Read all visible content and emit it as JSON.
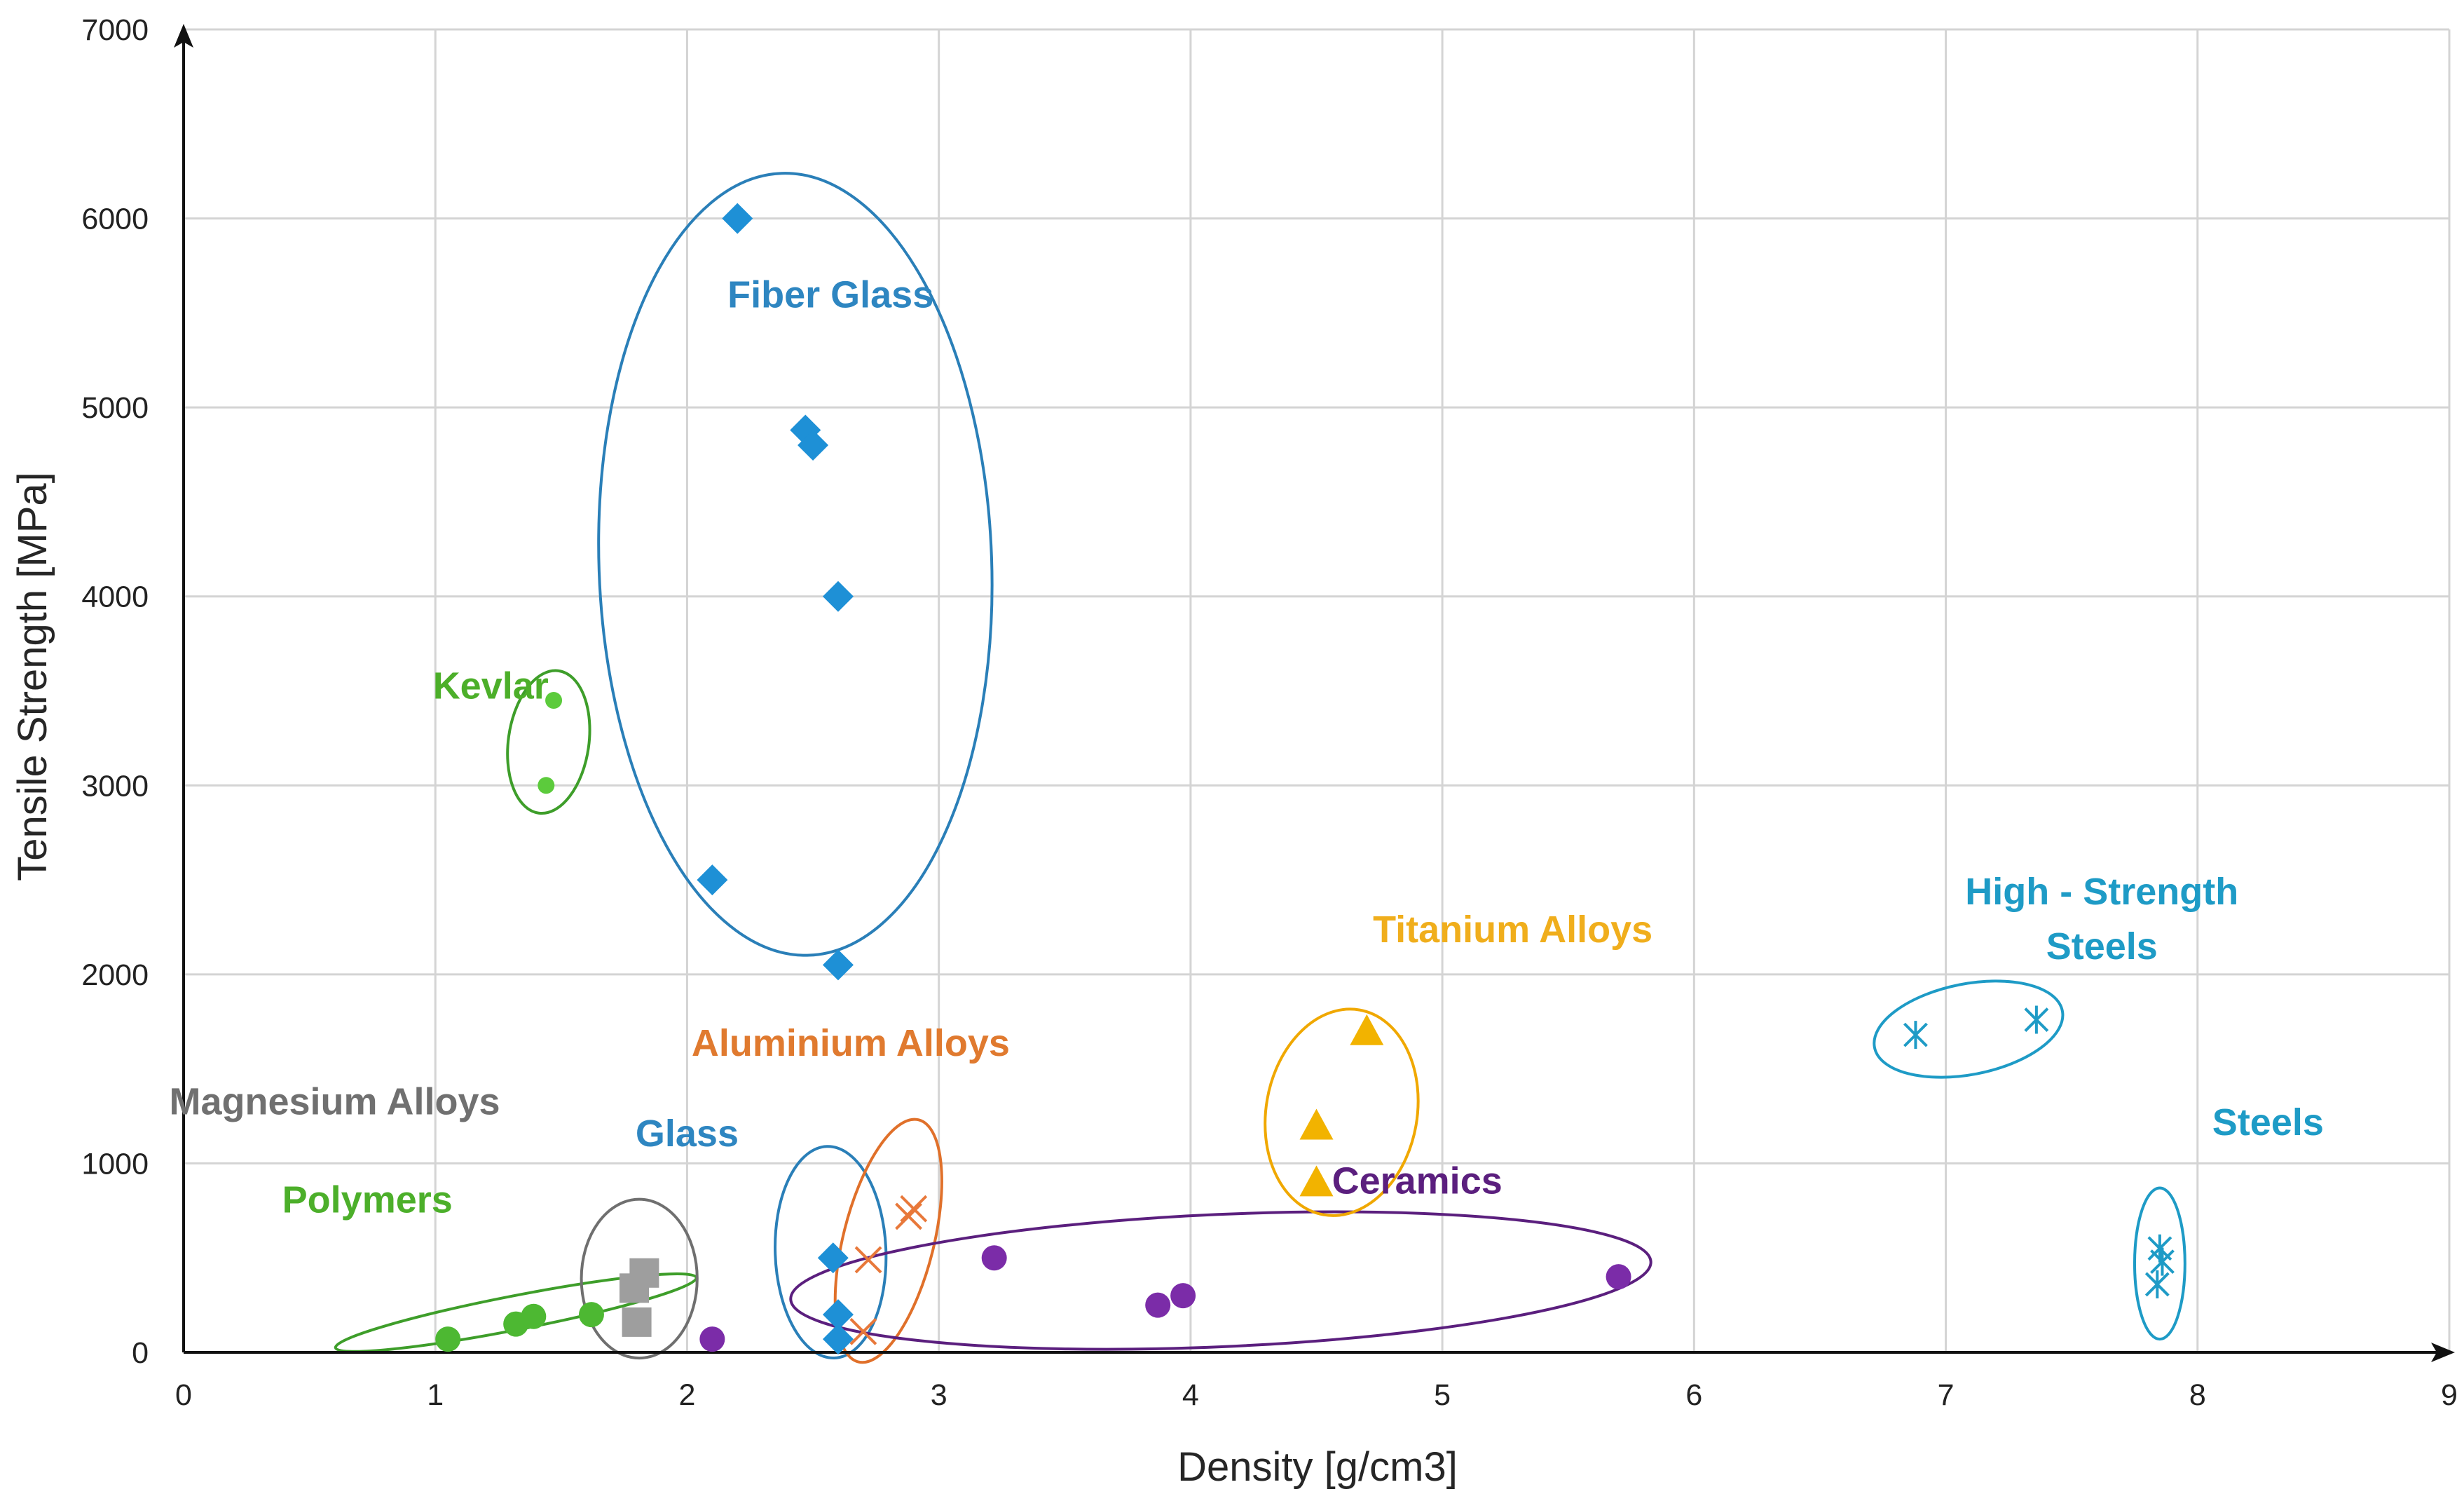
{
  "chart_data": {
    "type": "scatter",
    "title": "",
    "xlabel": "Density [g/cm3]",
    "ylabel": "Tensile Strength [MPa]",
    "xlim": [
      0,
      9
    ],
    "ylim": [
      0,
      7000
    ],
    "x_ticks": [
      0,
      1,
      2,
      3,
      4,
      5,
      6,
      7,
      8,
      9
    ],
    "y_ticks": [
      0,
      1000,
      2000,
      3000,
      4000,
      5000,
      6000,
      7000
    ],
    "grid": true,
    "series": [
      {
        "name": "Fiber Glass",
        "label": "Fiber Glass",
        "marker": "diamond",
        "color": "#1E90D6",
        "label_color": "#2E86C1",
        "ellipse_color": "#2A7FB8",
        "points": [
          [
            2.2,
            6000
          ],
          [
            2.47,
            4880
          ],
          [
            2.5,
            4800
          ],
          [
            2.6,
            4000
          ],
          [
            2.1,
            2500
          ],
          [
            2.6,
            2050
          ]
        ],
        "ellipse": {
          "cx": 2.43,
          "cy": 4170,
          "rx_units": 0.78,
          "ry_units": 2070,
          "angle_deg": -2
        },
        "label_pos": {
          "x": 2.57,
          "y": 5530
        }
      },
      {
        "name": "Kevlar",
        "label": "Kevlar",
        "marker": "circle-small",
        "color": "#5CCB3C",
        "label_color": "#4CAF2A",
        "ellipse_color": "#3E9E2A",
        "points": [
          [
            1.47,
            3450
          ],
          [
            1.44,
            3000
          ]
        ],
        "ellipse": {
          "cx": 1.45,
          "cy": 3230,
          "rx_units": 0.16,
          "ry_units": 380,
          "angle_deg": 8
        },
        "label_pos": {
          "x": 1.22,
          "y": 3460
        }
      },
      {
        "name": "Polymers",
        "label": "Polymers",
        "marker": "circle",
        "color": "#4DB832",
        "label_color": "#4CAF2A",
        "ellipse_color": "#3E9E2A",
        "points": [
          [
            1.05,
            70
          ],
          [
            1.32,
            150
          ],
          [
            1.39,
            190
          ],
          [
            1.62,
            200
          ]
        ],
        "ellipse": {
          "cx": 1.32,
          "cy": 210,
          "rx_units": 0.73,
          "ry_units": 90,
          "angle_deg": -11
        },
        "label_pos": {
          "x": 0.73,
          "y": 740
        }
      },
      {
        "name": "Magnesium Alloys",
        "label": "Magnesium Alloys",
        "marker": "square",
        "color": "#9E9E9E",
        "label_color": "#707070",
        "ellipse_color": "#6F6F6F",
        "points": [
          [
            1.79,
            340
          ],
          [
            1.83,
            420
          ],
          [
            1.8,
            160
          ]
        ],
        "ellipse": {
          "cx": 1.81,
          "cy": 390,
          "rx_units": 0.23,
          "ry_units": 420,
          "angle_deg": 0
        },
        "label_pos": {
          "x": 0.6,
          "y": 1260
        }
      },
      {
        "name": "Glass",
        "label": "Glass",
        "marker": "diamond",
        "color": "#1E90D6",
        "label_color": "#2E86C1",
        "ellipse_color": "#2A7FB8",
        "points": [
          [
            2.58,
            500
          ],
          [
            2.6,
            200
          ],
          [
            2.6,
            70
          ]
        ],
        "ellipse": {
          "cx": 2.57,
          "cy": 530,
          "rx_units": 0.22,
          "ry_units": 560,
          "angle_deg": -2
        },
        "label_pos": {
          "x": 2.0,
          "y": 1090
        }
      },
      {
        "name": "Aluminium Alloys",
        "label": "Aluminium Alloys",
        "marker": "x",
        "color": "#E8783A",
        "label_color": "#E07A2F",
        "ellipse_color": "#E0702A",
        "points": [
          [
            2.72,
            490
          ],
          [
            2.9,
            760
          ],
          [
            2.88,
            720
          ],
          [
            2.7,
            110
          ]
        ],
        "ellipse": {
          "cx": 2.8,
          "cy": 590,
          "rx_units": 0.18,
          "ry_units": 660,
          "angle_deg": 14
        },
        "label_pos": {
          "x": 2.65,
          "y": 1570
        }
      },
      {
        "name": "Ceramics",
        "label": "Ceramics",
        "marker": "circle",
        "color": "#7B2CA8",
        "label_color": "#5B1F7E",
        "ellipse_color": "#5B1F7E",
        "points": [
          [
            2.1,
            70
          ],
          [
            3.22,
            500
          ],
          [
            3.87,
            250
          ],
          [
            3.97,
            300
          ],
          [
            5.7,
            400
          ]
        ],
        "ellipse": {
          "cx": 4.12,
          "cy": 380,
          "rx_units": 1.71,
          "ry_units": 350,
          "angle_deg": -2.5
        },
        "label_pos": {
          "x": 4.9,
          "y": 840
        }
      },
      {
        "name": "Titanium Alloys",
        "label": "Titanium Alloys",
        "marker": "triangle",
        "color": "#F2B300",
        "label_color": "#F0AE1C",
        "ellipse_color": "#F0A800",
        "points": [
          [
            4.5,
            1200
          ],
          [
            4.5,
            900
          ],
          [
            4.7,
            1700
          ]
        ],
        "ellipse": {
          "cx": 4.6,
          "cy": 1270,
          "rx_units": 0.3,
          "ry_units": 550,
          "angle_deg": 10
        },
        "label_pos": {
          "x": 5.28,
          "y": 2170
        }
      },
      {
        "name": "High - Strength Steels",
        "label_lines": [
          "High - Strength",
          "Steels"
        ],
        "marker": "asterisk",
        "color": "#1E9BC6",
        "label_color": "#1E9BC6",
        "ellipse_color": "#1E9BC6",
        "points": [
          [
            6.88,
            1680
          ],
          [
            7.36,
            1760
          ]
        ],
        "ellipse": {
          "cx": 7.09,
          "cy": 1710,
          "rx_units": 0.38,
          "ry_units": 240,
          "angle_deg": -11
        },
        "label_pos": {
          "x": 7.62,
          "y": 2370
        }
      },
      {
        "name": "Steels",
        "label": "Steels",
        "marker": "asterisk",
        "color": "#1E9BC6",
        "label_color": "#1E9BC6",
        "ellipse_color": "#1E9BC6",
        "points": [
          [
            7.85,
            550
          ],
          [
            7.86,
            480
          ],
          [
            7.84,
            360
          ]
        ],
        "ellipse": {
          "cx": 7.85,
          "cy": 470,
          "rx_units": 0.1,
          "ry_units": 400,
          "angle_deg": 0
        },
        "label_pos": {
          "x": 8.28,
          "y": 1150
        }
      }
    ]
  }
}
